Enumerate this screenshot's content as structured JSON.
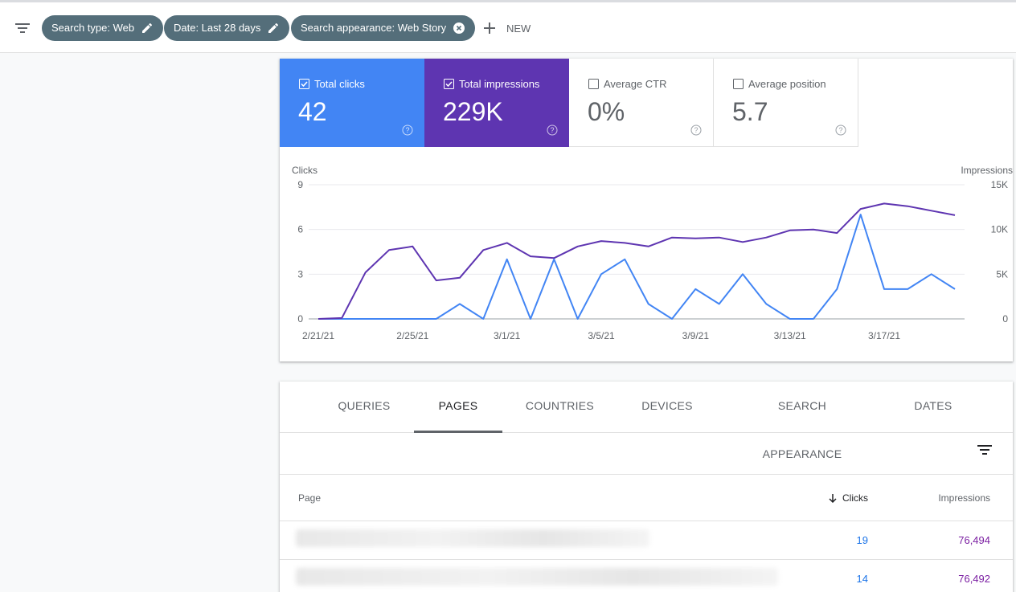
{
  "filters": {
    "chips": [
      {
        "label": "Search type: Web",
        "icon": "edit-icon"
      },
      {
        "label": "Date: Last 28 days",
        "icon": "edit-icon"
      },
      {
        "label": "Search appearance: Web Story",
        "icon": "close-circle-icon"
      }
    ],
    "new_label": "NEW"
  },
  "metrics": [
    {
      "label": "Total clicks",
      "value": "42",
      "checked": true,
      "color": "#4285f4"
    },
    {
      "label": "Total impressions",
      "value": "229K",
      "checked": true,
      "color": "#5e35b1"
    },
    {
      "label": "Average CTR",
      "value": "0%",
      "checked": false
    },
    {
      "label": "Average position",
      "value": "5.7",
      "checked": false
    }
  ],
  "chart_data": {
    "type": "line",
    "y_left_label": "Clicks",
    "y_right_label": "Impressions",
    "y_left_ticks": [
      "9",
      "6",
      "3",
      "0"
    ],
    "y_right_ticks": [
      "15K",
      "10K",
      "5K",
      "0"
    ],
    "ylim_left": [
      0,
      9
    ],
    "ylim_right": [
      0,
      15000
    ],
    "x_tick_labels": [
      "2/21/21",
      "2/25/21",
      "3/1/21",
      "3/5/21",
      "3/9/21",
      "3/13/21",
      "3/17/21"
    ],
    "x": [
      "2/21/21",
      "2/22/21",
      "2/23/21",
      "2/24/21",
      "2/25/21",
      "2/26/21",
      "2/27/21",
      "2/28/21",
      "3/1/21",
      "3/2/21",
      "3/3/21",
      "3/4/21",
      "3/5/21",
      "3/6/21",
      "3/7/21",
      "3/8/21",
      "3/9/21",
      "3/10/21",
      "3/11/21",
      "3/12/21",
      "3/13/21",
      "3/14/21",
      "3/15/21",
      "3/16/21",
      "3/17/21",
      "3/18/21",
      "3/19/21",
      "3/20/21"
    ],
    "series": [
      {
        "name": "Clicks",
        "axis": "left",
        "color": "#4285f4",
        "values": [
          0,
          0,
          0,
          0,
          0,
          0,
          1,
          0,
          4,
          0,
          4,
          0,
          3,
          4,
          1,
          0,
          2,
          1,
          3,
          1,
          0,
          0,
          2,
          7,
          2,
          2,
          3,
          2
        ]
      },
      {
        "name": "Impressions",
        "axis": "right",
        "color": "#5e35b1",
        "values": [
          0,
          100,
          5200,
          7700,
          8100,
          4300,
          4600,
          7700,
          8500,
          7000,
          6800,
          8100,
          8700,
          8500,
          8100,
          9100,
          9000,
          9100,
          8600,
          9100,
          9900,
          10000,
          9600,
          12300,
          12900,
          12600,
          12100,
          11600
        ]
      }
    ],
    "grid": true,
    "legend": "none"
  },
  "table": {
    "tabs": [
      "QUERIES",
      "PAGES",
      "COUNTRIES",
      "DEVICES",
      "SEARCH APPEARANCE",
      "DATES"
    ],
    "selected_tab": "PAGES",
    "columns": {
      "page": "Page",
      "clicks": "Clicks",
      "impressions": "Impressions"
    },
    "sort_indicator": "arrow-down-icon",
    "rows": [
      {
        "clicks": "19",
        "impressions": "76,494"
      },
      {
        "clicks": "14",
        "impressions": "76,492"
      }
    ]
  }
}
